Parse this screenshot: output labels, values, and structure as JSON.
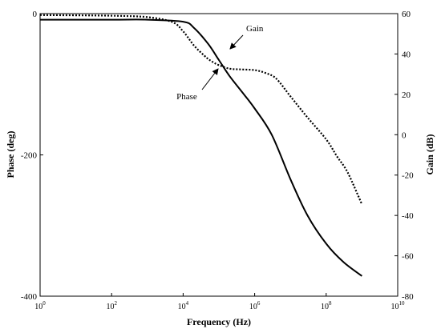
{
  "chart_data": {
    "type": "line",
    "xlabel": "Frequency (Hz)",
    "ylabel_left": "Phase (deg)",
    "ylabel_right": "Gain (dB)",
    "x_scale": "log",
    "xlim": [
      1,
      10000000000
    ],
    "ylim_left": [
      -400,
      0
    ],
    "ylim_right": [
      -80,
      60
    ],
    "x_ticks": [
      {
        "value": 1,
        "base": "10",
        "exp": "0"
      },
      {
        "value": 100,
        "base": "10",
        "exp": "2"
      },
      {
        "value": 10000,
        "base": "10",
        "exp": "4"
      },
      {
        "value": 1000000,
        "base": "10",
        "exp": "6"
      },
      {
        "value": 100000000,
        "base": "10",
        "exp": "8"
      },
      {
        "value": 10000000000,
        "base": "10",
        "exp": "10"
      }
    ],
    "y_ticks_left": [
      0,
      -200,
      -400
    ],
    "y_ticks_right": [
      60,
      40,
      20,
      0,
      -20,
      -40,
      -60,
      -80
    ],
    "series": [
      {
        "name": "Gain",
        "axis": "right",
        "style": "solid",
        "x": [
          1,
          100,
          1000,
          10000,
          20000,
          50000,
          100000,
          200000,
          500000,
          1000000,
          3000000,
          10000000,
          30000000,
          100000000,
          300000000,
          1000000000
        ],
        "y": [
          57,
          57,
          57,
          56,
          53,
          45,
          37,
          29,
          20,
          13,
          0,
          -22,
          -40,
          -54,
          -63,
          -70
        ]
      },
      {
        "name": "Phase",
        "axis": "left",
        "style": "dotted",
        "x": [
          1,
          100,
          1000,
          5000,
          10000,
          20000,
          40000,
          60000,
          100000,
          200000,
          400000,
          1000000,
          2000000,
          4000000,
          10000000,
          30000000,
          100000000,
          200000000,
          400000000,
          1000000000
        ],
        "y": [
          -2,
          -3,
          -5,
          -12,
          -25,
          -45,
          -60,
          -67,
          -73,
          -78,
          -79,
          -80,
          -84,
          -92,
          -117,
          -147,
          -178,
          -202,
          -225,
          -270
        ]
      }
    ],
    "annotations": [
      {
        "text": "Gain",
        "series": "Gain"
      },
      {
        "text": "Phase",
        "series": "Phase"
      }
    ],
    "grid": false,
    "legend": "none"
  }
}
